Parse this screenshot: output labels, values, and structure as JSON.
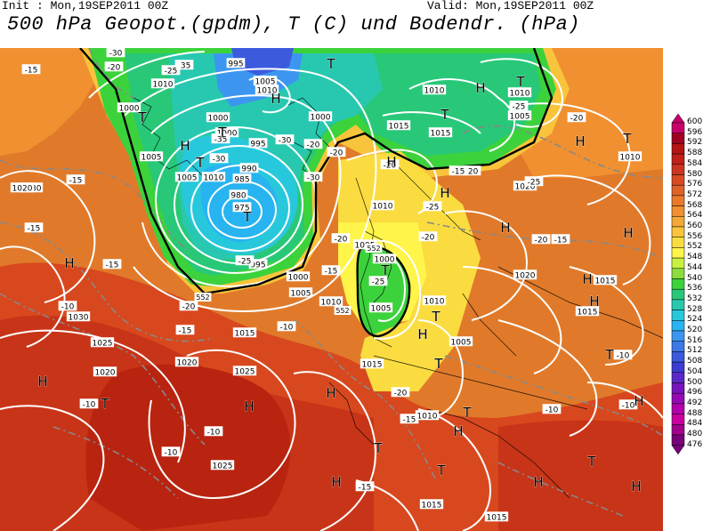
{
  "header": {
    "init": "Init : Mon,19SEP2011 00Z",
    "valid": "Valid: Mon,19SEP2011 00Z",
    "title": "500 hPa Geopot.(gpdm), T (C) und Bodendr. (hPa)"
  },
  "colorbar": {
    "ticks": [
      "600",
      "596",
      "592",
      "588",
      "584",
      "580",
      "576",
      "572",
      "568",
      "564",
      "560",
      "556",
      "552",
      "548",
      "544",
      "540",
      "536",
      "532",
      "528",
      "524",
      "520",
      "516",
      "512",
      "508",
      "504",
      "500",
      "496",
      "492",
      "488",
      "484",
      "480",
      "476"
    ],
    "colors": [
      "#c8006a",
      "#a00020",
      "#b41414",
      "#c02018",
      "#cc3420",
      "#d84a24",
      "#e06228",
      "#ea7a2a",
      "#f09030",
      "#f4a838",
      "#f8c43c",
      "#fadc40",
      "#fff44a",
      "#c8f040",
      "#8cdc3c",
      "#3cd23c",
      "#28c878",
      "#28c8b0",
      "#28c8dc",
      "#28b4f0",
      "#3c96f0",
      "#3c78e6",
      "#3c5adc",
      "#3c3cd2",
      "#5a28c8",
      "#7814be",
      "#960ab4",
      "#b400aa",
      "#c800a0",
      "#a0008c",
      "#780078"
    ]
  },
  "pressure_labels": [
    {
      "text": "995"
    },
    {
      "text": "1010"
    },
    {
      "text": "1005"
    },
    {
      "text": "1010"
    },
    {
      "text": "1000"
    },
    {
      "text": "1000"
    },
    {
      "text": "1000"
    },
    {
      "text": "1005"
    },
    {
      "text": "1005"
    },
    {
      "text": "1010"
    },
    {
      "text": "1000"
    },
    {
      "text": "995"
    },
    {
      "text": "990"
    },
    {
      "text": "985"
    },
    {
      "text": "980"
    },
    {
      "text": "975"
    },
    {
      "text": "995"
    },
    {
      "text": "1000"
    },
    {
      "text": "1005"
    },
    {
      "text": "1010"
    },
    {
      "text": "1015"
    },
    {
      "text": "1030"
    },
    {
      "text": "1030"
    },
    {
      "text": "1025"
    },
    {
      "text": "1020"
    },
    {
      "text": "1020"
    },
    {
      "text": "1025"
    },
    {
      "text": "1025"
    },
    {
      "text": "1015"
    },
    {
      "text": "1010"
    },
    {
      "text": "1005"
    },
    {
      "text": "1000"
    },
    {
      "text": "1015"
    },
    {
      "text": "1010"
    },
    {
      "text": "1015"
    },
    {
      "text": "1020"
    },
    {
      "text": "1020"
    },
    {
      "text": "1015"
    },
    {
      "text": "1015"
    },
    {
      "text": "1020"
    },
    {
      "text": "1005"
    },
    {
      "text": "1010"
    },
    {
      "text": "1010"
    },
    {
      "text": "1005"
    },
    {
      "text": "1010"
    },
    {
      "text": "1010"
    },
    {
      "text": "1015"
    },
    {
      "text": "1005"
    },
    {
      "text": "1015"
    }
  ],
  "temp_labels": [
    {
      "text": "-15"
    },
    {
      "text": "-20"
    },
    {
      "text": "-30"
    },
    {
      "text": "-35"
    },
    {
      "text": "-25"
    },
    {
      "text": "-30"
    },
    {
      "text": "-20"
    },
    {
      "text": "-30"
    },
    {
      "text": "-35"
    },
    {
      "text": "-25"
    },
    {
      "text": "-20"
    },
    {
      "text": "-15"
    },
    {
      "text": "-15"
    },
    {
      "text": "-15"
    },
    {
      "text": "-10"
    },
    {
      "text": "-20"
    },
    {
      "text": "-15"
    },
    {
      "text": "-10"
    },
    {
      "text": "-25"
    },
    {
      "text": "-15"
    },
    {
      "text": "-20"
    },
    {
      "text": "-25"
    },
    {
      "text": "-25"
    },
    {
      "text": "-20"
    },
    {
      "text": "-20"
    },
    {
      "text": "-15"
    },
    {
      "text": "-25"
    },
    {
      "text": "-20"
    },
    {
      "text": "-20"
    },
    {
      "text": "-15"
    },
    {
      "text": "-15"
    },
    {
      "text": "-10"
    },
    {
      "text": "-10"
    },
    {
      "text": "-10"
    },
    {
      "text": "-20"
    },
    {
      "text": "-15"
    },
    {
      "text": "-10"
    },
    {
      "text": "-10"
    },
    {
      "text": "-10"
    },
    {
      "text": "-20"
    },
    {
      "text": "-30"
    }
  ],
  "center_labels": [
    {
      "text": "T"
    },
    {
      "text": "T"
    },
    {
      "text": "T"
    },
    {
      "text": "T"
    },
    {
      "text": "T"
    },
    {
      "text": "T"
    },
    {
      "text": "T"
    },
    {
      "text": "T"
    },
    {
      "text": "T"
    },
    {
      "text": "T"
    },
    {
      "text": "T"
    },
    {
      "text": "T"
    },
    {
      "text": "T"
    },
    {
      "text": "T"
    },
    {
      "text": "T"
    },
    {
      "text": "T"
    },
    {
      "text": "T"
    },
    {
      "text": "H"
    },
    {
      "text": "H"
    },
    {
      "text": "H"
    },
    {
      "text": "H"
    },
    {
      "text": "H"
    },
    {
      "text": "H"
    },
    {
      "text": "H"
    },
    {
      "text": "H"
    },
    {
      "text": "H"
    },
    {
      "text": "H"
    },
    {
      "text": "H"
    },
    {
      "text": "H"
    },
    {
      "text": "H"
    },
    {
      "text": "H"
    },
    {
      "text": "H"
    },
    {
      "text": "H"
    },
    {
      "text": "H"
    },
    {
      "text": "H"
    },
    {
      "text": "H"
    },
    {
      "text": "H"
    }
  ],
  "geopot_labels": [
    {
      "text": "552"
    },
    {
      "text": "552"
    },
    {
      "text": "552"
    }
  ]
}
